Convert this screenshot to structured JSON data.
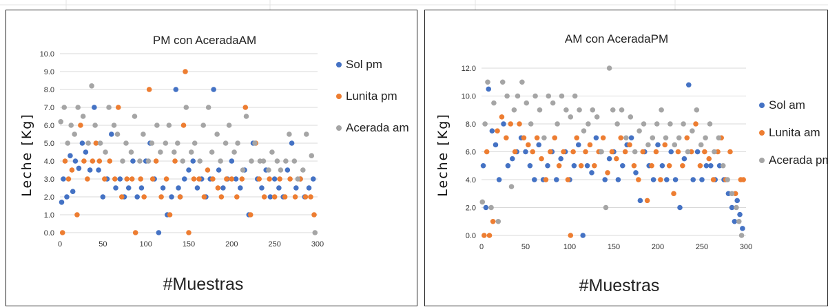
{
  "colors": {
    "sol": "#4472C4",
    "lunita": "#ED7D31",
    "acerada": "#A5A5A5",
    "grid": "#D9D9D9"
  },
  "chart_data": [
    {
      "type": "scatter",
      "title": "PM con AceradaAM",
      "xlabel": "#Muestras",
      "ylabel": "Leche [Kg]",
      "xlim": [
        0,
        300
      ],
      "ylim": [
        0,
        10
      ],
      "x_ticks": [
        "0",
        "50",
        "100",
        "150",
        "200",
        "250",
        "300"
      ],
      "y_ticks": [
        "0.0",
        "1.0",
        "2.0",
        "3.0",
        "4.0",
        "5.0",
        "6.0",
        "7.0",
        "8.0",
        "9.0",
        "10.0"
      ],
      "grid": true,
      "legend_position": "right",
      "series": [
        {
          "name": "Sol pm",
          "color": "#4472C4",
          "x": [
            2,
            4,
            8,
            12,
            15,
            18,
            22,
            26,
            30,
            35,
            40,
            45,
            50,
            55,
            60,
            65,
            70,
            75,
            80,
            85,
            90,
            95,
            100,
            105,
            110,
            115,
            120,
            125,
            130,
            135,
            138,
            140,
            145,
            150,
            155,
            160,
            165,
            170,
            175,
            179,
            185,
            190,
            195,
            200,
            205,
            210,
            215,
            220,
            225,
            230,
            235,
            240,
            245,
            250,
            255,
            260,
            265,
            270,
            275,
            280,
            285,
            290,
            295
          ],
          "y": [
            1.7,
            3.0,
            2.0,
            4.3,
            2.3,
            4.0,
            3.6,
            5.0,
            4.5,
            3.5,
            7.0,
            3.5,
            2.0,
            3.0,
            5.5,
            2.5,
            3.0,
            2.0,
            2.5,
            4.0,
            2.0,
            2.5,
            4.0,
            5.0,
            3.0,
            0.0,
            2.5,
            1.0,
            2.0,
            8.0,
            2.5,
            2.0,
            3.0,
            3.5,
            4.0,
            2.5,
            3.0,
            2.0,
            3.0,
            8.0,
            3.5,
            2.5,
            3.0,
            4.0,
            3.0,
            2.5,
            3.5,
            1.0,
            5.0,
            3.0,
            2.5,
            3.5,
            2.0,
            3.0,
            2.5,
            2.0,
            3.5,
            5.0,
            2.5,
            3.0,
            2.0,
            2.5,
            3.0
          ]
        },
        {
          "name": "Lunita pm",
          "color": "#ED7D31",
          "x": [
            3,
            6,
            10,
            14,
            20,
            24,
            28,
            32,
            38,
            42,
            46,
            52,
            58,
            64,
            68,
            72,
            78,
            84,
            88,
            94,
            98,
            104,
            108,
            112,
            118,
            124,
            128,
            134,
            140,
            144,
            146,
            150,
            156,
            162,
            168,
            172,
            178,
            184,
            188,
            194,
            200,
            206,
            212,
            216,
            222,
            228,
            232,
            238,
            244,
            250,
            256,
            262,
            268,
            274,
            280,
            286,
            292,
            296
          ],
          "y": [
            0.0,
            4.0,
            3.0,
            3.5,
            1.0,
            6.0,
            4.0,
            3.0,
            4.0,
            5.0,
            4.0,
            3.0,
            4.0,
            3.0,
            7.0,
            2.0,
            3.0,
            3.0,
            0.0,
            3.0,
            2.0,
            8.0,
            3.0,
            4.0,
            2.0,
            3.0,
            1.0,
            4.0,
            2.0,
            6.0,
            9.0,
            0.0,
            3.0,
            3.0,
            2.0,
            3.5,
            3.0,
            2.5,
            2.0,
            3.0,
            3.0,
            2.0,
            3.0,
            7.0,
            1.0,
            5.0,
            3.0,
            2.0,
            3.0,
            2.0,
            3.0,
            2.0,
            3.0,
            2.0,
            3.0,
            2.0,
            2.0,
            1.0
          ]
        },
        {
          "name": "Acerada am",
          "color": "#A5A5A5",
          "x": [
            1,
            5,
            9,
            13,
            17,
            21,
            27,
            33,
            37,
            41,
            47,
            53,
            57,
            63,
            67,
            73,
            77,
            83,
            87,
            93,
            97,
            103,
            107,
            113,
            117,
            123,
            127,
            133,
            137,
            143,
            147,
            153,
            157,
            163,
            167,
            173,
            177,
            183,
            187,
            193,
            197,
            203,
            207,
            213,
            217,
            223,
            227,
            233,
            237,
            243,
            247,
            253,
            257,
            263,
            267,
            273,
            277,
            283,
            287,
            293,
            297
          ],
          "y": [
            6.2,
            7.0,
            5.0,
            6.0,
            5.5,
            7.0,
            6.5,
            5.0,
            8.2,
            6.0,
            5.0,
            4.5,
            7.0,
            6.0,
            5.5,
            4.0,
            5.0,
            4.5,
            6.5,
            4.0,
            5.5,
            4.0,
            5.0,
            6.0,
            4.5,
            5.0,
            6.0,
            4.5,
            5.0,
            4.0,
            7.0,
            4.5,
            5.0,
            4.0,
            6.0,
            7.0,
            4.5,
            5.5,
            4.0,
            5.0,
            6.0,
            4.5,
            5.0,
            3.5,
            6.5,
            4.0,
            5.0,
            4.0,
            4.0,
            3.5,
            4.5,
            4.0,
            3.5,
            4.0,
            5.5,
            4.0,
            3.0,
            3.5,
            5.5,
            4.3,
            0.0
          ]
        }
      ]
    },
    {
      "type": "scatter",
      "title": "AM con AceradaPM",
      "xlabel": "#Muestras",
      "ylabel": "Leche [Kg]",
      "xlim": [
        0,
        300
      ],
      "ylim": [
        0,
        12
      ],
      "x_ticks": [
        "0",
        "50",
        "100",
        "150",
        "200",
        "250",
        "300"
      ],
      "y_ticks": [
        "0.0",
        "2.0",
        "4.0",
        "6.0",
        "8.0",
        "10.0",
        "12.0"
      ],
      "grid": true,
      "legend_position": "right",
      "series": [
        {
          "name": "Sol am",
          "color": "#4472C4",
          "x": [
            2,
            5,
            8,
            12,
            16,
            20,
            25,
            30,
            35,
            40,
            45,
            50,
            55,
            60,
            65,
            70,
            75,
            80,
            85,
            90,
            95,
            100,
            105,
            110,
            115,
            120,
            125,
            130,
            135,
            140,
            145,
            150,
            155,
            160,
            165,
            170,
            175,
            180,
            185,
            190,
            195,
            200,
            205,
            210,
            215,
            220,
            225,
            230,
            235,
            240,
            245,
            250,
            255,
            260,
            265,
            270,
            275,
            280,
            284,
            287,
            290,
            293,
            296
          ],
          "y": [
            5.0,
            2.0,
            10.5,
            7.5,
            6.5,
            4.0,
            8.0,
            5.0,
            5.5,
            6.0,
            7.0,
            6.0,
            5.0,
            4.0,
            6.5,
            4.0,
            5.0,
            6.0,
            4.0,
            5.5,
            6.0,
            4.0,
            5.0,
            6.5,
            0.0,
            5.0,
            4.5,
            7.0,
            6.0,
            4.0,
            5.5,
            6.0,
            4.0,
            5.0,
            6.5,
            7.0,
            4.5,
            2.5,
            6.0,
            5.0,
            4.0,
            6.5,
            5.0,
            4.0,
            6.0,
            4.0,
            2.0,
            5.5,
            10.8,
            4.0,
            6.0,
            4.0,
            5.0,
            5.0,
            4.0,
            5.0,
            4.0,
            3.0,
            2.0,
            1.0,
            2.5,
            1.5,
            0.5
          ]
        },
        {
          "name": "Lunita am",
          "color": "#ED7D31",
          "x": [
            3,
            6,
            9,
            13,
            18,
            23,
            28,
            33,
            38,
            43,
            48,
            53,
            58,
            63,
            68,
            73,
            78,
            83,
            88,
            93,
            98,
            101,
            104,
            108,
            113,
            118,
            123,
            128,
            133,
            138,
            143,
            148,
            153,
            158,
            163,
            168,
            173,
            178,
            183,
            188,
            193,
            198,
            203,
            208,
            213,
            218,
            223,
            228,
            233,
            238,
            243,
            248,
            253,
            258,
            263,
            268,
            272,
            277,
            282,
            288,
            294,
            297
          ],
          "y": [
            0.0,
            6.0,
            0.0,
            1.0,
            7.5,
            8.5,
            7.0,
            8.0,
            6.0,
            8.0,
            7.0,
            6.5,
            6.0,
            7.0,
            5.5,
            4.0,
            6.0,
            7.0,
            5.0,
            6.0,
            4.0,
            0.0,
            6.0,
            7.0,
            5.0,
            6.0,
            6.5,
            5.0,
            6.0,
            7.0,
            4.5,
            6.0,
            5.5,
            7.0,
            6.0,
            6.5,
            5.0,
            4.0,
            6.0,
            2.5,
            5.0,
            6.0,
            4.0,
            6.5,
            5.0,
            3.0,
            6.0,
            5.0,
            7.0,
            6.0,
            8.0,
            5.0,
            6.0,
            5.5,
            4.0,
            6.0,
            7.0,
            4.0,
            6.0,
            3.0,
            4.0,
            4.0
          ]
        },
        {
          "name": "Acerada pm",
          "color": "#A5A5A5",
          "x": [
            1,
            4,
            7,
            11,
            14,
            19,
            24,
            29,
            34,
            37,
            41,
            46,
            51,
            56,
            61,
            66,
            71,
            76,
            81,
            86,
            91,
            96,
            101,
            106,
            111,
            116,
            121,
            126,
            131,
            136,
            141,
            145,
            149,
            154,
            159,
            164,
            169,
            174,
            179,
            184,
            189,
            194,
            199,
            204,
            209,
            214,
            219,
            224,
            229,
            234,
            239,
            244,
            249,
            254,
            259,
            264,
            269,
            274,
            279,
            284,
            289,
            292,
            295
          ],
          "y": [
            2.4,
            8.0,
            11.0,
            2.0,
            9.5,
            1.0,
            11.0,
            10.0,
            3.5,
            9.0,
            10.0,
            11.0,
            9.5,
            8.0,
            10.0,
            9.0,
            7.0,
            10.0,
            9.5,
            8.0,
            10.0,
            9.0,
            8.5,
            10.0,
            9.0,
            7.5,
            8.0,
            9.0,
            8.5,
            6.0,
            2.0,
            12.0,
            9.0,
            8.0,
            9.0,
            7.0,
            8.5,
            6.0,
            7.5,
            8.0,
            6.5,
            7.0,
            8.0,
            9.0,
            7.0,
            8.0,
            6.5,
            7.0,
            8.0,
            6.0,
            7.5,
            9.0,
            6.5,
            7.0,
            8.0,
            6.0,
            7.0,
            5.0,
            4.0,
            3.0,
            2.0,
            1.0,
            0.0
          ]
        }
      ]
    }
  ]
}
